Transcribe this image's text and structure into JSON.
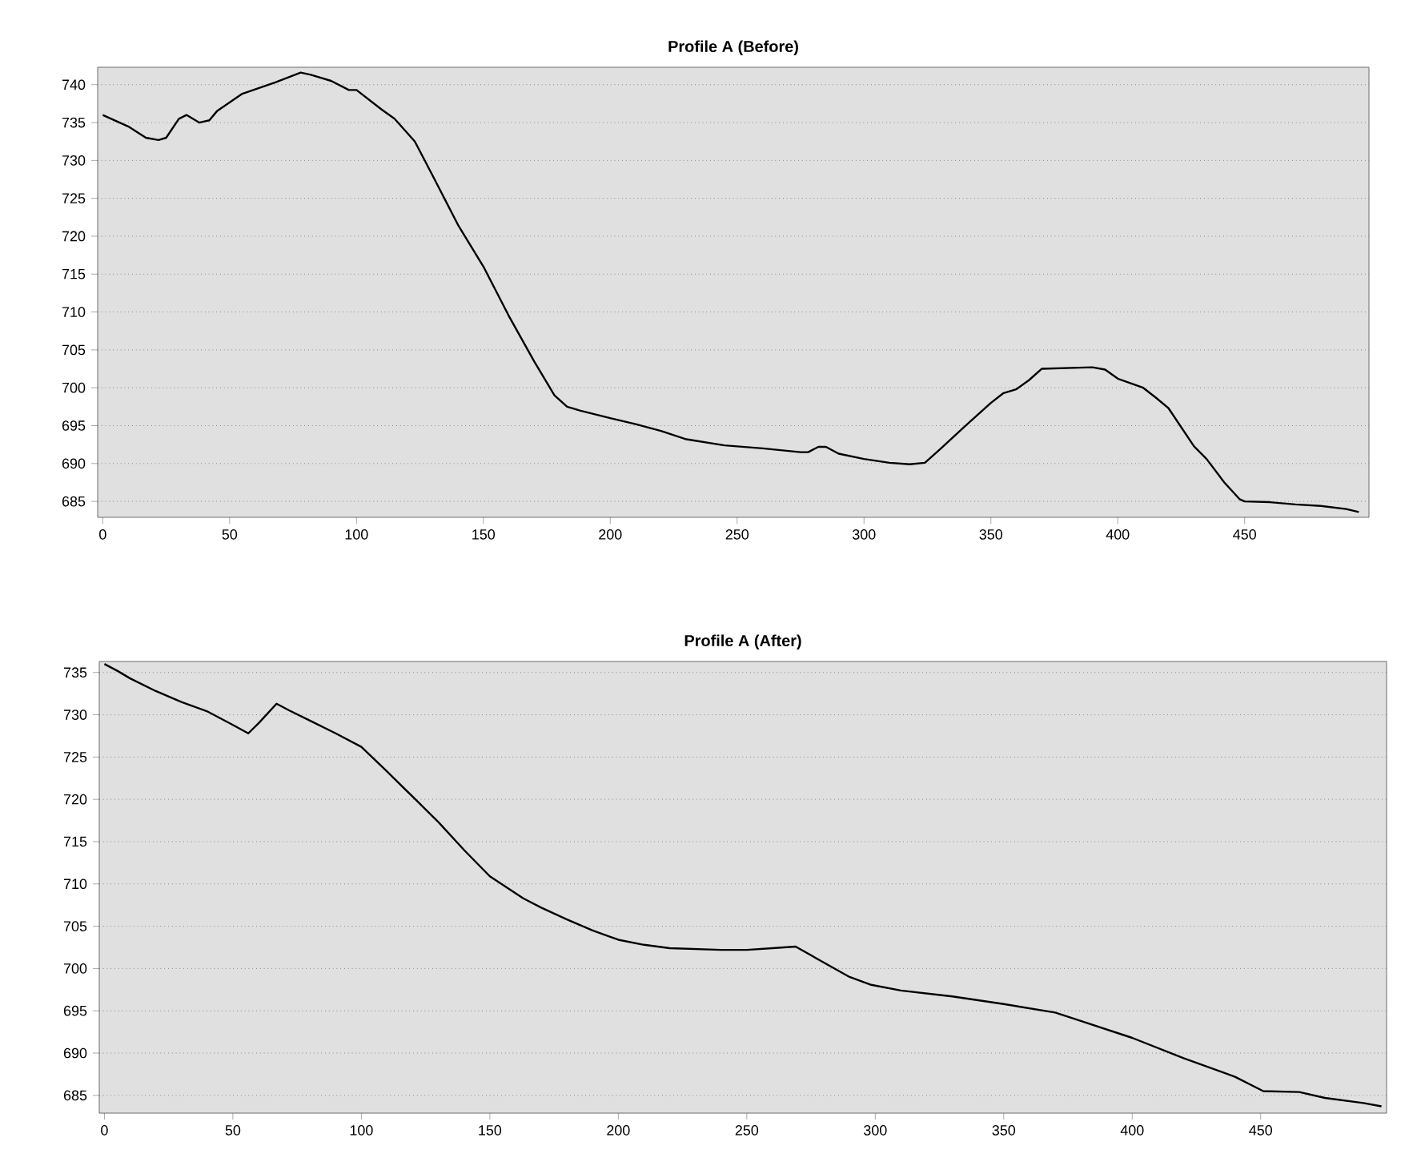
{
  "chart_data": [
    {
      "type": "line",
      "title": "Profile A (Before)",
      "color": "#000000",
      "grid": "y",
      "xlim": [
        -2,
        499
      ],
      "ylim": [
        682.9,
        742.3
      ],
      "xticks": [
        0,
        50,
        100,
        150,
        200,
        250,
        300,
        350,
        400,
        450
      ],
      "yticks": [
        685,
        690,
        695,
        700,
        705,
        710,
        715,
        720,
        725,
        730,
        735,
        740
      ],
      "x": [
        0,
        10,
        17,
        22,
        25,
        30,
        33,
        38,
        42,
        45,
        55,
        68,
        78,
        82,
        90,
        97,
        100,
        110,
        115,
        123,
        130,
        140,
        150,
        160,
        170,
        178,
        183,
        188,
        200,
        210,
        220,
        230,
        245,
        260,
        275,
        278,
        282,
        285,
        290,
        300,
        310,
        318,
        324,
        330,
        340,
        350,
        355,
        360,
        365,
        370,
        380,
        390,
        395,
        400,
        410,
        415,
        420,
        430,
        435,
        442,
        448,
        450,
        460,
        470,
        480,
        490,
        495
      ],
      "values": [
        736,
        734.5,
        733,
        732.7,
        733,
        735.5,
        736,
        735,
        735.3,
        736.5,
        738.8,
        740.3,
        741.6,
        741.3,
        740.5,
        739.3,
        739.3,
        736.7,
        735.5,
        732.5,
        728,
        721.5,
        716,
        709.5,
        703.5,
        699,
        697.5,
        697,
        696,
        695.2,
        694.3,
        693.2,
        692.4,
        692,
        691.5,
        691.5,
        692.2,
        692.2,
        691.3,
        690.6,
        690.1,
        689.9,
        690.1,
        691.9,
        695,
        698,
        699.3,
        699.8,
        701,
        702.5,
        702.6,
        702.7,
        702.4,
        701.2,
        700,
        698.7,
        697.3,
        692.3,
        690.6,
        687.5,
        685.3,
        685,
        684.9,
        684.6,
        684.4,
        684,
        683.6
      ]
    },
    {
      "type": "line",
      "title": "Profile A (After)",
      "color": "#000000",
      "grid": "y",
      "xlim": [
        -2,
        499
      ],
      "ylim": [
        682.9,
        736.3
      ],
      "xticks": [
        0,
        50,
        100,
        150,
        200,
        250,
        300,
        350,
        400,
        450
      ],
      "yticks": [
        685,
        690,
        695,
        700,
        705,
        710,
        715,
        720,
        725,
        730,
        735
      ],
      "x": [
        0,
        5,
        10,
        20,
        30,
        40,
        50,
        56,
        60,
        67,
        72,
        80,
        90,
        100,
        110,
        120,
        130,
        140,
        150,
        163,
        170,
        180,
        190,
        200,
        210,
        220,
        240,
        250,
        260,
        269,
        280,
        290,
        298,
        310,
        330,
        350,
        370,
        380,
        400,
        420,
        440,
        451,
        465,
        475,
        490,
        497
      ],
      "values": [
        736,
        735.2,
        734.3,
        732.8,
        731.5,
        730.4,
        728.8,
        727.8,
        729,
        731.3,
        730.5,
        729.3,
        727.8,
        726.2,
        723.3,
        720.3,
        717.3,
        714,
        710.9,
        708.3,
        707.2,
        705.8,
        704.5,
        703.4,
        702.8,
        702.4,
        702.2,
        702.2,
        702.4,
        702.6,
        700.7,
        699,
        698.1,
        697.4,
        696.7,
        695.8,
        694.8,
        693.8,
        691.8,
        689.4,
        687.2,
        685.5,
        685.4,
        684.7,
        684.1,
        683.7
      ]
    }
  ]
}
